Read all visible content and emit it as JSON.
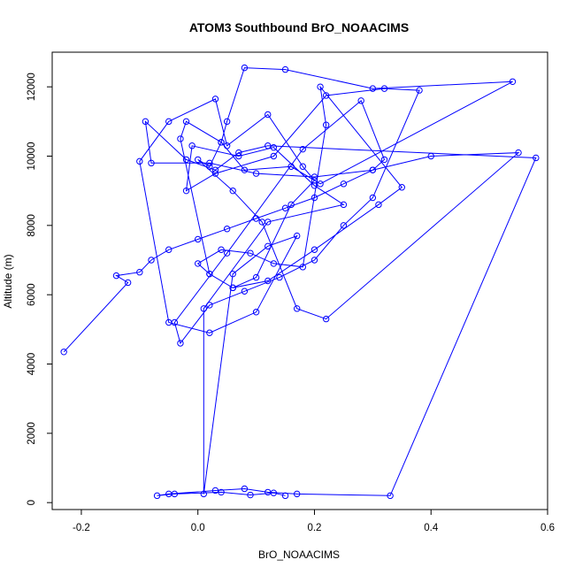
{
  "chart_data": {
    "type": "line",
    "title": "ATOM3 Southbound BrO_NOAACIMS",
    "xlabel": "BrO_NOAACIMS",
    "ylabel": "Altitude (m)",
    "xlim": [
      -0.25,
      0.6
    ],
    "ylim": [
      -200,
      13000
    ],
    "x_ticks": [
      "-0.2",
      "0.0",
      "0.2",
      "0.4",
      "0.6"
    ],
    "x_tick_values": [
      -0.2,
      0.0,
      0.2,
      0.4,
      0.6
    ],
    "y_ticks": [
      "0",
      "2000",
      "4000",
      "6000",
      "8000",
      "10000",
      "12000"
    ],
    "y_tick_values": [
      0,
      2000,
      4000,
      6000,
      8000,
      10000,
      12000
    ],
    "grid": false,
    "series": [
      {
        "color": "#0000ff",
        "markers": "open-circle",
        "x": [
          -0.23,
          -0.12,
          -0.14,
          -0.1,
          -0.08,
          -0.05,
          0.0,
          0.05,
          0.1,
          0.15,
          0.2,
          0.25,
          0.3,
          0.32,
          0.28,
          0.18,
          0.05,
          -0.04,
          -0.03,
          0.02,
          0.08,
          0.14,
          0.2,
          0.25,
          0.3,
          0.38,
          0.32,
          0.22,
          0.13,
          0.03,
          -0.02,
          -0.01,
          0.07,
          0.13,
          0.2,
          0.25,
          0.12,
          0.01,
          0.01,
          0.06,
          0.12,
          0.17,
          0.1,
          0.02,
          -0.05,
          -0.1,
          -0.05,
          0.03,
          0.05,
          0.12,
          0.18,
          0.2,
          0.16,
          0.1,
          0.06,
          0.02,
          0.0,
          0.04,
          0.09,
          0.13,
          0.18,
          0.22,
          0.21,
          0.35,
          0.31,
          0.2,
          0.12,
          0.06,
          0.02,
          -0.03,
          -0.02,
          0.04,
          0.08,
          0.16,
          0.21,
          0.54,
          0.3,
          0.15,
          0.08,
          0.05,
          0.04,
          0.02,
          0.0,
          0.06,
          0.11,
          0.17,
          0.22,
          0.55,
          0.4,
          0.3,
          0.2,
          0.1,
          0.02,
          -0.08,
          -0.09,
          -0.02,
          0.03,
          0.07,
          0.12,
          0.58,
          0.33,
          0.17,
          0.12,
          0.08,
          0.03,
          -0.05,
          -0.07,
          -0.04,
          0.04,
          0.09,
          0.13,
          0.15
        ],
        "y": [
          4350,
          6350,
          6550,
          6650,
          7000,
          7300,
          7600,
          7900,
          8200,
          8500,
          8800,
          9200,
          9600,
          9900,
          11600,
          10200,
          7200,
          5200,
          4600,
          5700,
          6100,
          6500,
          7000,
          8000,
          8800,
          11900,
          11950,
          11750,
          10000,
          9500,
          9000,
          10300,
          10000,
          10250,
          9150,
          8600,
          8100,
          5600,
          250,
          6600,
          7400,
          7700,
          5500,
          4900,
          5200,
          9850,
          11000,
          11650,
          10300,
          11200,
          9700,
          9300,
          8600,
          6500,
          6200,
          6600,
          6900,
          7300,
          7200,
          6900,
          6800,
          10900,
          12000,
          9100,
          8600,
          7300,
          6400,
          6200,
          6600,
          10500,
          11000,
          10400,
          9600,
          9700,
          9200,
          12150,
          11950,
          12500,
          12550,
          11000,
          10400,
          9700,
          9900,
          9000,
          8100,
          5600,
          5300,
          10100,
          10000,
          9600,
          9400,
          9500,
          9800,
          9800,
          11000,
          9900,
          9600,
          10100,
          10300,
          9950,
          200,
          250,
          300,
          400,
          350,
          250,
          200,
          250,
          300,
          220,
          280,
          200
        ]
      }
    ]
  }
}
